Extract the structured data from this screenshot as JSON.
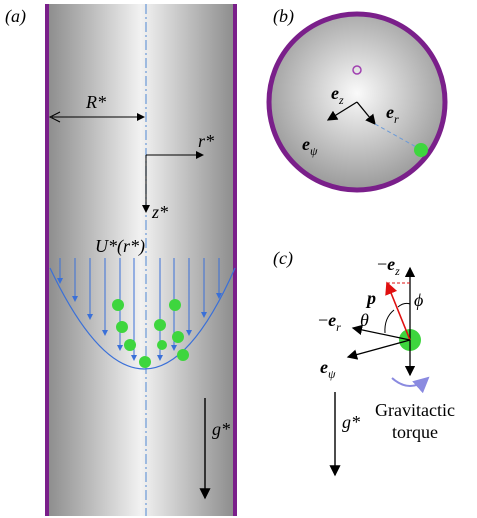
{
  "panel_a": {
    "label": "(a)",
    "radius": "R*",
    "r_axis": "r*",
    "z_axis": "z*",
    "flow": "U*(r*)",
    "gravity": "g*"
  },
  "panel_b": {
    "label": "(b)",
    "ez": {
      "base": "e",
      "sub": "z"
    },
    "er": {
      "base": "e",
      "sub": "r"
    },
    "epsi": {
      "base": "e",
      "sub": "ψ"
    }
  },
  "panel_c": {
    "label": "(c)",
    "p": "p",
    "minus_ez": {
      "sign": "−",
      "base": "e",
      "sub": "z"
    },
    "phi": "ϕ",
    "minus_er": {
      "sign": "−",
      "base": "e",
      "sub": "r"
    },
    "theta": "θ",
    "epsi": {
      "base": "e",
      "sub": "ψ"
    },
    "torque_line1": "Gravitactic",
    "torque_line2": "torque",
    "gravity": "g*"
  }
}
